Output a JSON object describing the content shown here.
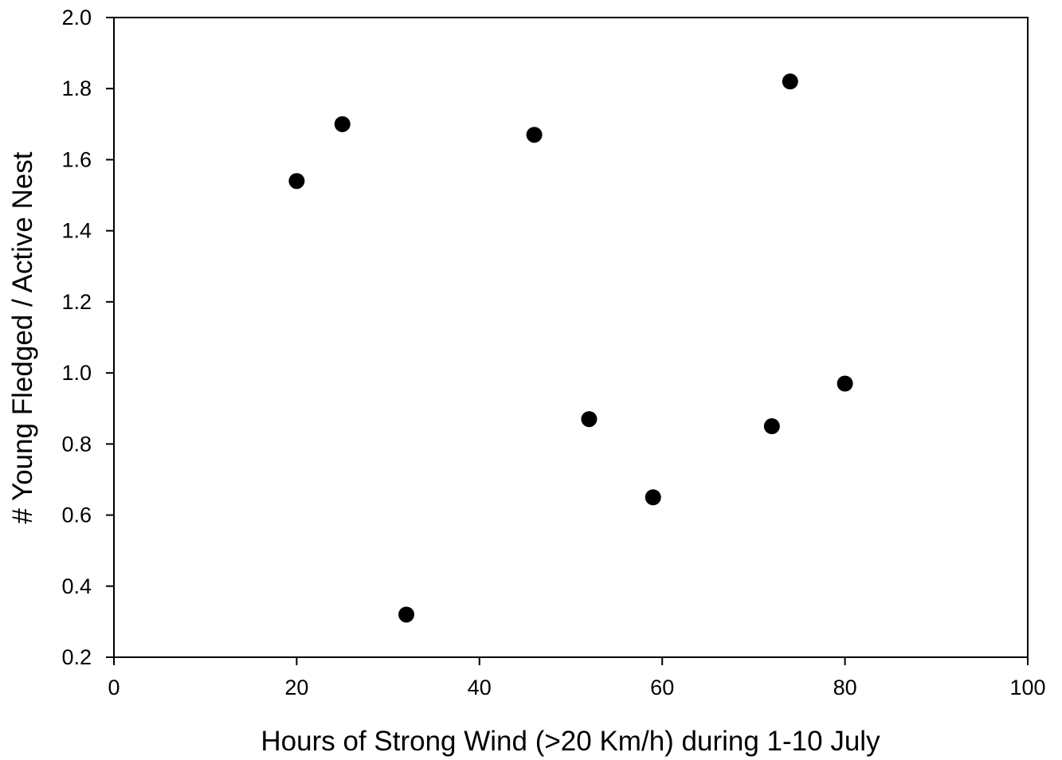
{
  "chart_data": {
    "type": "scatter",
    "title": "",
    "xlabel": "Hours of Strong Wind (>20 Km/h) during 1-10 July",
    "ylabel": "# Young Fledged / Active Nest",
    "xlim": [
      0,
      100
    ],
    "ylim": [
      0.2,
      2.0
    ],
    "xticks": [
      0,
      20,
      40,
      60,
      80,
      100
    ],
    "xtick_labels": [
      "0",
      "20",
      "40",
      "60",
      "80",
      "100"
    ],
    "yticks": [
      0.2,
      0.4,
      0.6,
      0.8,
      1.0,
      1.2,
      1.4,
      1.6,
      1.8,
      2.0
    ],
    "ytick_labels": [
      "0.2",
      "0.4",
      "0.6",
      "0.8",
      "1.0",
      "1.2",
      "1.4",
      "1.6",
      "1.8",
      "2.0"
    ],
    "grid": false,
    "legend": "none",
    "marker_color": "#000000",
    "series": [
      {
        "points": [
          {
            "x": 20,
            "y": 1.54
          },
          {
            "x": 25,
            "y": 1.7
          },
          {
            "x": 32,
            "y": 0.32
          },
          {
            "x": 46,
            "y": 1.67
          },
          {
            "x": 52,
            "y": 0.87
          },
          {
            "x": 59,
            "y": 0.65
          },
          {
            "x": 72,
            "y": 0.85
          },
          {
            "x": 74,
            "y": 1.82
          },
          {
            "x": 80,
            "y": 0.97
          }
        ]
      }
    ]
  }
}
